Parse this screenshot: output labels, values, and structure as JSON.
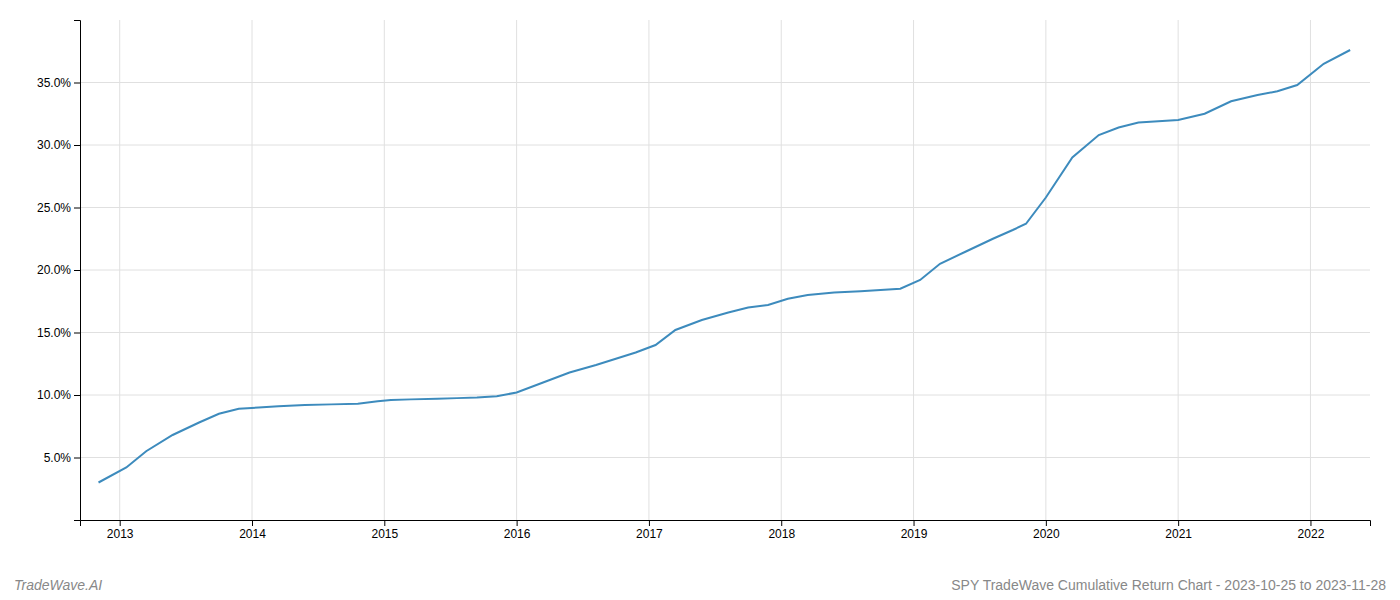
{
  "chart_data": {
    "type": "line",
    "title": "SPY TradeWave Cumulative Return Chart - 2023-10-25 to 2023-11-28",
    "annotations": [
      "TradeWave.AI"
    ],
    "x": [
      2012.84,
      2013.05,
      2013.2,
      2013.4,
      2013.6,
      2013.75,
      2013.9,
      2014.05,
      2014.2,
      2014.4,
      2014.6,
      2014.8,
      2014.95,
      2015.05,
      2015.2,
      2015.4,
      2015.55,
      2015.7,
      2015.85,
      2016.0,
      2016.2,
      2016.4,
      2016.6,
      2016.75,
      2016.9,
      2017.05,
      2017.2,
      2017.4,
      2017.6,
      2017.75,
      2017.9,
      2018.05,
      2018.2,
      2018.4,
      2018.6,
      2018.75,
      2018.9,
      2019.05,
      2019.2,
      2019.4,
      2019.6,
      2019.75,
      2019.85,
      2020.0,
      2020.2,
      2020.4,
      2020.55,
      2020.7,
      2020.85,
      2021.0,
      2021.2,
      2021.4,
      2021.6,
      2021.75,
      2021.9,
      2022.1,
      2022.3
    ],
    "values": [
      3.0,
      4.2,
      5.5,
      6.8,
      7.8,
      8.5,
      8.9,
      9.0,
      9.1,
      9.2,
      9.25,
      9.3,
      9.5,
      9.6,
      9.65,
      9.7,
      9.75,
      9.8,
      9.9,
      10.2,
      11.0,
      11.8,
      12.4,
      12.9,
      13.4,
      14.0,
      15.2,
      16.0,
      16.6,
      17.0,
      17.2,
      17.7,
      18.0,
      18.2,
      18.3,
      18.4,
      18.5,
      19.2,
      20.5,
      21.5,
      22.5,
      23.2,
      23.7,
      25.8,
      29.0,
      30.8,
      31.4,
      31.8,
      31.9,
      32.0,
      32.5,
      33.5,
      34.0,
      34.3,
      34.8,
      36.5,
      37.6
    ],
    "color": "#3d8bbd",
    "xlim": [
      2012.7,
      2022.45
    ],
    "xticks": [
      2013,
      2014,
      2015,
      2016,
      2017,
      2018,
      2019,
      2020,
      2021,
      2022
    ],
    "ylim": [
      0,
      40
    ],
    "yticks": [
      {
        "value": 5.0,
        "label": "5.0%"
      },
      {
        "value": 10.0,
        "label": "10.0%"
      },
      {
        "value": 15.0,
        "label": "15.0%"
      },
      {
        "value": 20.0,
        "label": "20.0%"
      },
      {
        "value": 25.0,
        "label": "25.0%"
      },
      {
        "value": 30.0,
        "label": "30.0%"
      },
      {
        "value": 35.0,
        "label": "35.0%"
      }
    ],
    "grid": true
  }
}
